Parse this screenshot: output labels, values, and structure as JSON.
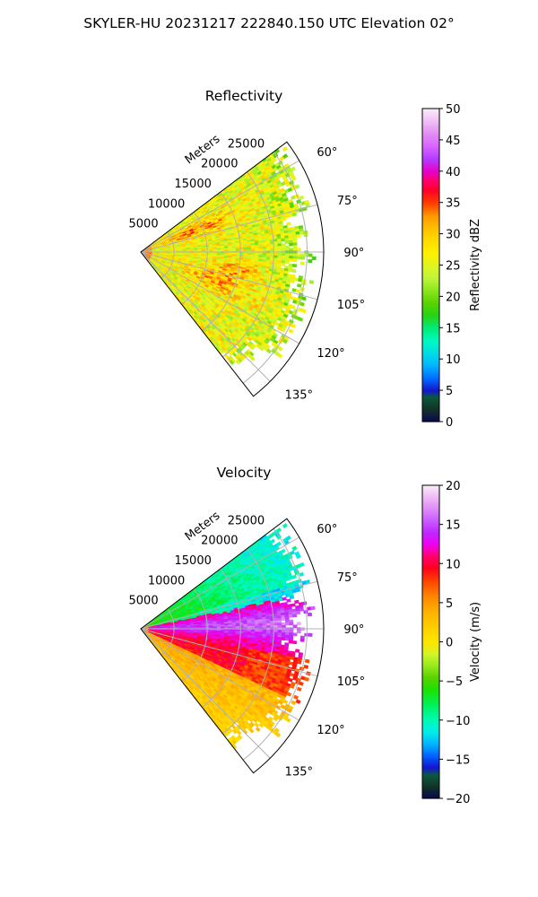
{
  "figure": {
    "suptitle": "SKYLER-HU  20231217  222840.150 UTC Elevation 02°"
  },
  "chart_data": [
    {
      "type": "heatmap",
      "subtype": "polar-ppi-sector",
      "title": "Reflectivity",
      "radial_label": "Meters",
      "radial_ticks": [
        "5000",
        "10000",
        "15000",
        "20000",
        "25000"
      ],
      "radial_tick_values": [
        5000,
        10000,
        15000,
        20000,
        25000
      ],
      "rlim": [
        0,
        27500
      ],
      "angular_ticks": [
        "60°",
        "75°",
        "90°",
        "105°",
        "120°",
        "135°"
      ],
      "angular_tick_values": [
        60,
        75,
        90,
        105,
        120,
        135
      ],
      "theta_range": [
        53,
        142
      ],
      "grid": true,
      "colorbar": {
        "label": "Reflectivity dBZ",
        "ticks": [
          "0",
          "5",
          "10",
          "15",
          "20",
          "25",
          "30",
          "35",
          "40",
          "45",
          "50"
        ],
        "vmin": 0,
        "vmax": 50
      },
      "field_summary": "Mostly 22–32 dBZ across the sector, with bands of 35–40 dBZ near the radar around 65°–75° and 100°–120°, lower values (~20 dBZ) toward far range."
    },
    {
      "type": "heatmap",
      "subtype": "polar-ppi-sector",
      "title": "Velocity",
      "radial_label": "Meters",
      "radial_ticks": [
        "5000",
        "10000",
        "15000",
        "20000",
        "25000"
      ],
      "radial_tick_values": [
        5000,
        10000,
        15000,
        20000,
        25000
      ],
      "rlim": [
        0,
        27500
      ],
      "angular_ticks": [
        "60°",
        "75°",
        "90°",
        "105°",
        "120°",
        "135°"
      ],
      "angular_tick_values": [
        60,
        75,
        90,
        105,
        120,
        135
      ],
      "theta_range": [
        53,
        142
      ],
      "grid": true,
      "colorbar": {
        "label": "Velocity (m/s)",
        "ticks": [
          "−20",
          "−15",
          "−10",
          "−5",
          "0",
          "5",
          "10",
          "15",
          "20"
        ],
        "vmin": -20,
        "vmax": 20
      },
      "field_summary": "Negative velocities (about −12 to −5 m/s) for azimuths 53°–78°, sharp shear near 79°, strong positive velocities (12–17 m/s) around 80°–100°, 10–12 m/s around 100°–115°, and 0–5 m/s for azimuths beyond ~115°."
    }
  ],
  "colors": {
    "grid": "#b0b0b0",
    "axes": "#000000"
  }
}
